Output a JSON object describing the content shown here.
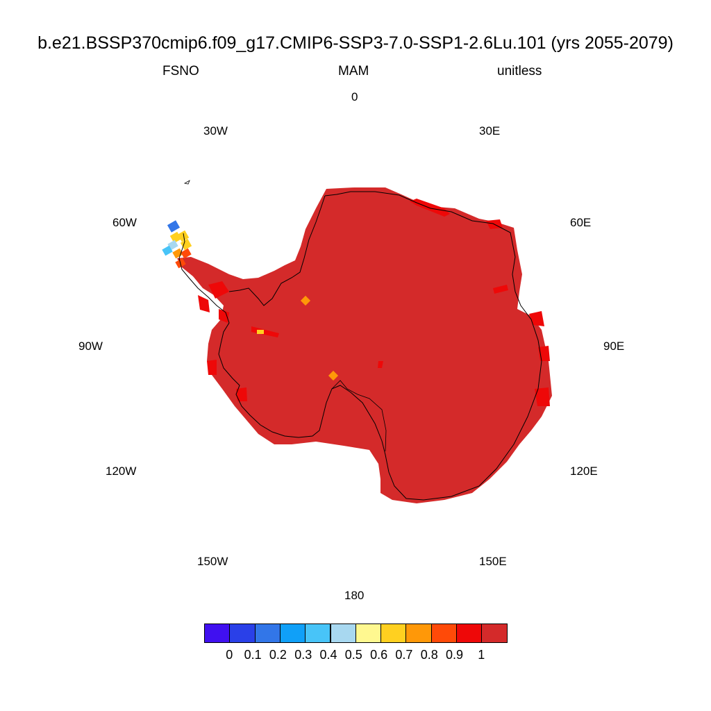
{
  "title": "b.e21.BSSP370cmip6.f09_g17.CMIP6-SSP3-7.0-SSP1-2.6Lu.101 (yrs 2055-2079)",
  "subtitle": {
    "left": "FSNO",
    "center": "MAM",
    "right": "unitless"
  },
  "longitude_labels": [
    "0",
    "30E",
    "60E",
    "90E",
    "120E",
    "150E",
    "180",
    "150W",
    "120W",
    "90W",
    "60W",
    "30W"
  ],
  "colorbar": {
    "colors": [
      "#4010f0",
      "#2a40e8",
      "#3276e8",
      "#10a0f8",
      "#48c4f8",
      "#a8d8f0",
      "#fff890",
      "#ffd020",
      "#ff9808",
      "#ff4a08",
      "#ee0808",
      "#d42a2a"
    ],
    "labels": [
      "0",
      "0.1",
      "0.2",
      "0.3",
      "0.4",
      "0.5",
      "0.6",
      "0.7",
      "0.8",
      "0.9",
      "1"
    ]
  },
  "map": {
    "ice_color": "#d42a2a",
    "coast_color": "#000000"
  }
}
